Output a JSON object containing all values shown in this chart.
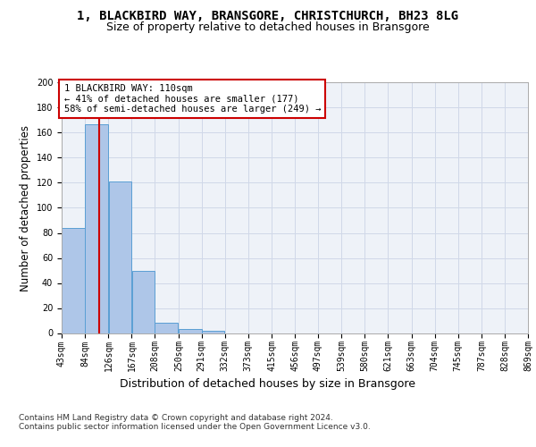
{
  "title": "1, BLACKBIRD WAY, BRANSGORE, CHRISTCHURCH, BH23 8LG",
  "subtitle": "Size of property relative to detached houses in Bransgore",
  "xlabel": "Distribution of detached houses by size in Bransgore",
  "ylabel": "Number of detached properties",
  "bin_edges": [
    43,
    84,
    126,
    167,
    208,
    250,
    291,
    332,
    373,
    415,
    456,
    497,
    539,
    580,
    621,
    663,
    704,
    745,
    787,
    828,
    869
  ],
  "bar_heights": [
    84,
    167,
    121,
    50,
    8,
    3,
    2,
    0,
    0,
    0,
    0,
    0,
    0,
    0,
    0,
    0,
    0,
    0,
    0,
    0
  ],
  "bar_color": "#aec6e8",
  "bar_edge_color": "#5a9fd4",
  "property_size": 110,
  "red_line_color": "#cc0000",
  "annotation_text": "1 BLACKBIRD WAY: 110sqm\n← 41% of detached houses are smaller (177)\n58% of semi-detached houses are larger (249) →",
  "annotation_box_color": "#ffffff",
  "annotation_box_edge": "#cc0000",
  "ylim": [
    0,
    200
  ],
  "yticks": [
    0,
    20,
    40,
    60,
    80,
    100,
    120,
    140,
    160,
    180,
    200
  ],
  "grid_color": "#d0d8e8",
  "background_color": "#eef2f8",
  "footer_text": "Contains HM Land Registry data © Crown copyright and database right 2024.\nContains public sector information licensed under the Open Government Licence v3.0.",
  "title_fontsize": 10,
  "subtitle_fontsize": 9,
  "axis_label_fontsize": 8.5,
  "tick_fontsize": 7,
  "annotation_fontsize": 7.5,
  "footer_fontsize": 6.5
}
